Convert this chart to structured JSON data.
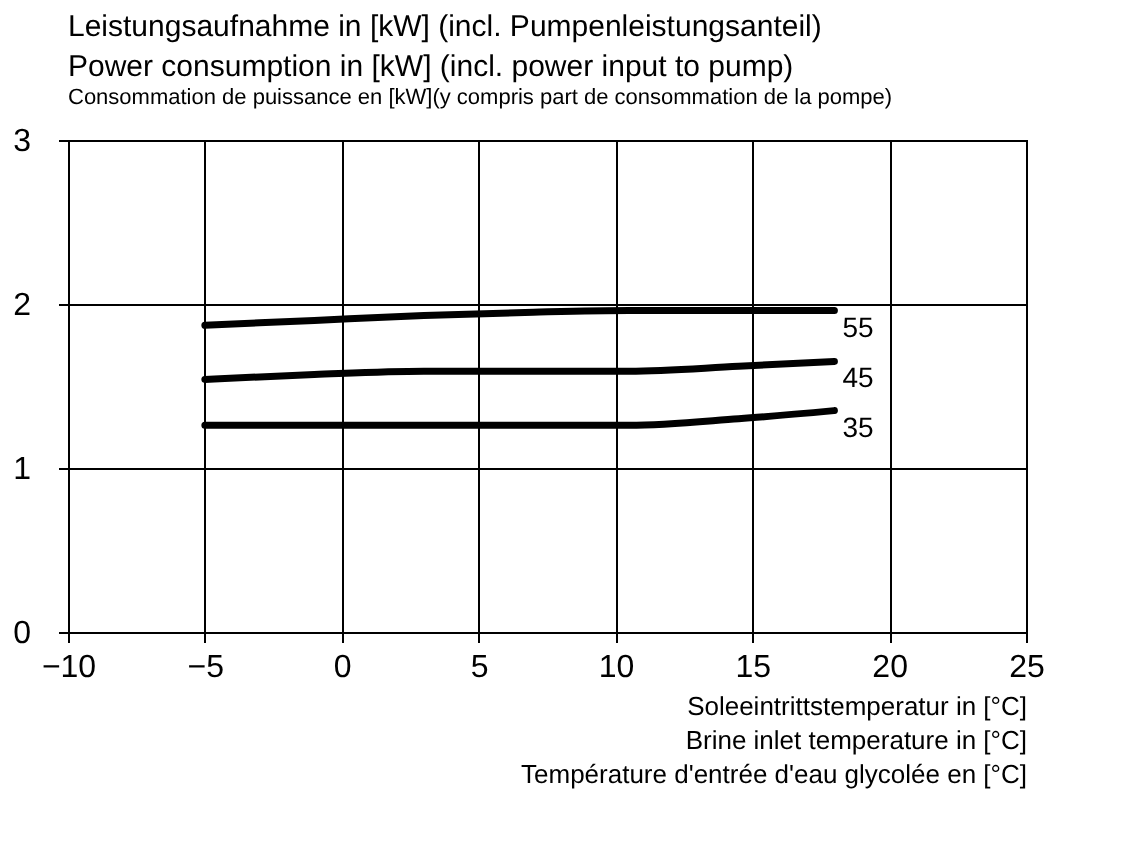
{
  "chart_data": {
    "type": "line",
    "ylabel": "Leistungsaufnahme in [kW] (incl. Pumpenleistungsanteil)\nPower consumption in [kW] (incl. power input to pump)\nConsommation de puissance en [kW](y compris part de consommation de la pompe)",
    "xlabel": "Soleeintrittstemperatur in [°C]\nBrine inlet temperature in [°C]\nTempérature d'entrée d'eau glycolée en [°C]",
    "x": [
      -5,
      -1,
      3,
      7,
      10.5,
      14.5,
      18
    ],
    "series": [
      {
        "name": "55",
        "color": "#000000",
        "values": [
          1.87,
          1.9,
          1.93,
          1.95,
          1.96,
          1.96,
          1.96
        ]
      },
      {
        "name": "45",
        "color": "#000000",
        "values": [
          1.54,
          1.57,
          1.59,
          1.59,
          1.59,
          1.62,
          1.65
        ]
      },
      {
        "name": "35",
        "color": "#000000",
        "values": [
          1.26,
          1.26,
          1.26,
          1.26,
          1.26,
          1.3,
          1.35
        ]
      }
    ],
    "xlim": [
      -10,
      25
    ],
    "xticks": [
      -10,
      -5,
      0,
      5,
      10,
      15,
      20,
      25
    ],
    "ylim": [
      0,
      3
    ],
    "yticks": [
      0,
      1,
      2,
      3
    ],
    "grid": true,
    "legend": false,
    "line_style": "solid",
    "marker": "none"
  }
}
